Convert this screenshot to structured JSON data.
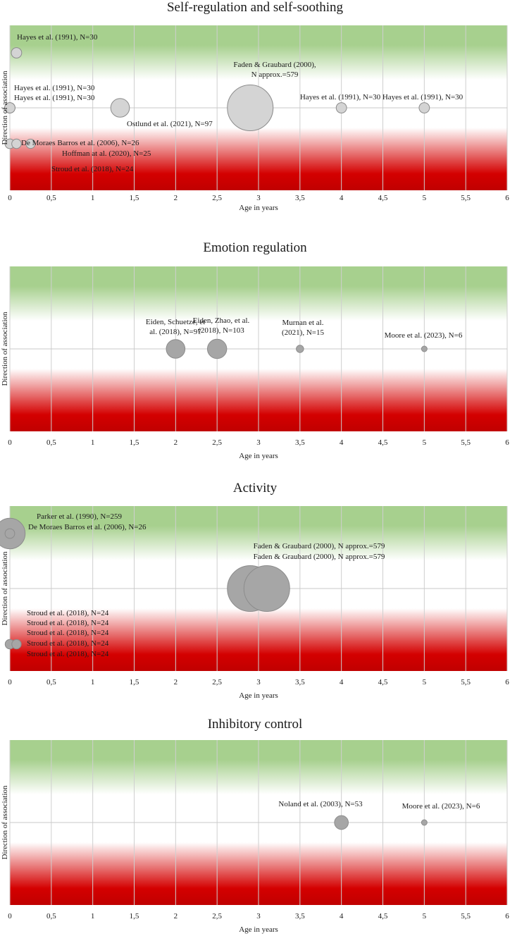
{
  "chart_data": [
    {
      "type": "scatter",
      "variant": "bubble",
      "title": "Self-regulation and self-soothing",
      "xlabel": "Age in years",
      "ylabel": "Direction of association",
      "xlim": [
        0,
        6
      ],
      "xticks": [
        "0",
        "0,5",
        "1",
        "1,5",
        "2",
        "2,5",
        "3",
        "3,5",
        "4",
        "4,5",
        "5",
        "5,5",
        "6"
      ],
      "y_levels": [
        "positive",
        "neutral",
        "negative"
      ],
      "background": "green (top) to red (bottom) gradient",
      "grid": "vertical",
      "bubble_color": "#d4d4d4",
      "points": [
        {
          "label": "Hayes et al. (1991), N=30",
          "x": 0.08,
          "y": "positive",
          "n": 30
        },
        {
          "label": "Hayes et al. (1991), N=30",
          "x": 0.0,
          "y": "neutral",
          "n": 30
        },
        {
          "label": "Hayes et al. (1991), N=30",
          "x": 0.0,
          "y": "neutral",
          "n": 30
        },
        {
          "label": "Ostlund et al. (2021), N=97",
          "x": 1.33,
          "y": "neutral",
          "n": 97
        },
        {
          "label": "Faden & Graubard (2000), N approx.=579",
          "x": 2.9,
          "y": "neutral",
          "n": 579
        },
        {
          "label": "Hayes et al. (1991), N=30",
          "x": 4.0,
          "y": "neutral",
          "n": 30
        },
        {
          "label": "Hayes et al. (1991), N=30",
          "x": 5.0,
          "y": "neutral",
          "n": 30
        },
        {
          "label": "De Moraes Barros et al. (2006), N=26",
          "x": 0.0,
          "y": "negative",
          "n": 26
        },
        {
          "label": "Hoffman at al. (2020), N=25",
          "x": 0.08,
          "y": "negative",
          "n": 25
        },
        {
          "label": "Stroud et al. (2018), N=24",
          "x": 0.25,
          "y": "negative",
          "n": 24
        }
      ],
      "annotations": [
        {
          "text": "Hayes et al. (1991), N=30",
          "x": 0.08,
          "y": "positive"
        },
        {
          "text": "Hayes et al. (1991), N=30",
          "x": 0.05,
          "y": "neutral"
        },
        {
          "text": "Hayes et al. (1991), N=30",
          "x": 0.05,
          "y": "neutral"
        },
        {
          "text": "Faden & Graubard (2000),",
          "x": 2.95,
          "y": "neutral"
        },
        {
          "text": "N approx.=579",
          "x": 2.95,
          "y": "neutral"
        },
        {
          "text": "Hayes et al. (1991), N=30",
          "x": 4.0,
          "y": "neutral"
        },
        {
          "text": "Hayes et al. (1991), N=30",
          "x": 5.0,
          "y": "neutral"
        },
        {
          "text": "Ostlund et al. (2021), N=97",
          "x": 1.6,
          "y": "neutral"
        },
        {
          "text": "De Moraes Barros et al. (2006), N=26",
          "x": 0.1,
          "y": "negative"
        },
        {
          "text": "Hoffman at al. (2020), N=25",
          "x": 0.55,
          "y": "negative"
        },
        {
          "text": "Stroud et al. (2018), N=24",
          "x": 0.5,
          "y": "negative"
        }
      ]
    },
    {
      "type": "scatter",
      "variant": "bubble",
      "title": "Emotion regulation",
      "xlabel": "Age in years",
      "ylabel": "Direction of association",
      "xlim": [
        0,
        6
      ],
      "xticks": [
        "0",
        "0,5",
        "1",
        "1,5",
        "2",
        "2,5",
        "3",
        "3,5",
        "4",
        "4,5",
        "5",
        "5,5",
        "6"
      ],
      "y_levels": [
        "positive",
        "neutral",
        "negative"
      ],
      "background": "green (top) to red (bottom) gradient",
      "grid": "vertical",
      "bubble_color": "#a6a6a6",
      "points": [
        {
          "label": "Eiden, Schuetze, et al. (2018), N=97",
          "x": 2.0,
          "y": "neutral",
          "n": 97
        },
        {
          "label": "Eiden, Zhao, et al. (2018), N=103",
          "x": 2.5,
          "y": "neutral",
          "n": 103
        },
        {
          "label": "Murnan et al. (2021), N=15",
          "x": 3.5,
          "y": "neutral",
          "n": 15
        },
        {
          "label": "Moore et al. (2023), N=6",
          "x": 5.0,
          "y": "neutral",
          "n": 6
        }
      ],
      "annotations": [
        {
          "text": "Eiden, Schuetze, et",
          "x": 2.0,
          "y": "neutral"
        },
        {
          "text": "al. (2018), N=97",
          "x": 2.0,
          "y": "neutral"
        },
        {
          "text": "Eiden, Zhao, et al.",
          "x": 2.55,
          "y": "neutral"
        },
        {
          "text": "(2018), N=103",
          "x": 2.55,
          "y": "neutral"
        },
        {
          "text": "Murnan et al.",
          "x": 3.55,
          "y": "neutral"
        },
        {
          "text": "(2021), N=15",
          "x": 3.55,
          "y": "neutral"
        },
        {
          "text": "Moore et al. (2023), N=6",
          "x": 5.0,
          "y": "neutral"
        }
      ]
    },
    {
      "type": "scatter",
      "variant": "bubble",
      "title": "Activity",
      "xlabel": "Age in years",
      "ylabel": "Direction of association",
      "xlim": [
        0,
        6
      ],
      "xticks": [
        "0",
        "0,5",
        "1",
        "1,5",
        "2",
        "2,5",
        "3",
        "3,5",
        "4",
        "4,5",
        "5",
        "5,5",
        "6"
      ],
      "y_levels": [
        "positive",
        "neutral",
        "negative"
      ],
      "background": "green (top) to red (bottom) gradient",
      "grid": "vertical",
      "bubble_color": "#a6a6a6",
      "points": [
        {
          "label": "Parker et al. (1990), N=259",
          "x": 0.0,
          "y": "positive",
          "n": 259
        },
        {
          "label": "De Moraes Barros et al. (2006), N=26",
          "x": 0.0,
          "y": "positive",
          "n": 26
        },
        {
          "label": "Faden & Graubard (2000), N approx.=579",
          "x": 2.9,
          "y": "neutral",
          "n": 579
        },
        {
          "label": "Faden & Graubard (2000), N approx.=579",
          "x": 3.1,
          "y": "neutral",
          "n": 579
        },
        {
          "label": "Stroud et al. (2018), N=24",
          "x": 0.0,
          "y": "negative",
          "n": 24
        },
        {
          "label": "Stroud et al. (2018), N=24",
          "x": 0.0,
          "y": "negative",
          "n": 24
        },
        {
          "label": "Stroud et al. (2018), N=24",
          "x": 0.0,
          "y": "negative",
          "n": 24
        },
        {
          "label": "Stroud et al. (2018), N=24",
          "x": 0.08,
          "y": "negative",
          "n": 24
        },
        {
          "label": "Stroud et al. (2018), N=24",
          "x": 0.08,
          "y": "negative",
          "n": 24
        }
      ],
      "annotations": [
        {
          "text": "Parker et al. (1990), N=259",
          "x": 0.45,
          "y": "positive"
        },
        {
          "text": "De Moraes Barros et al. (2006), N=26",
          "x": 0.3,
          "y": "positive"
        },
        {
          "text": "Faden & Graubard (2000), N approx.=579",
          "x": 3.3,
          "y": "neutral"
        },
        {
          "text": "Faden & Graubard (2000), N approx.=579",
          "x": 3.3,
          "y": "neutral"
        },
        {
          "text": "Stroud et al. (2018), N=24",
          "x": 0.2,
          "y": "negative"
        },
        {
          "text": "Stroud et al. (2018), N=24",
          "x": 0.2,
          "y": "negative"
        },
        {
          "text": "Stroud et al. (2018), N=24",
          "x": 0.2,
          "y": "negative"
        },
        {
          "text": "Stroud et al. (2018), N=24",
          "x": 0.2,
          "y": "negative"
        },
        {
          "text": "Stroud et al. (2018), N=24",
          "x": 0.2,
          "y": "negative"
        }
      ]
    },
    {
      "type": "scatter",
      "variant": "bubble",
      "title": "Inhibitory control",
      "xlabel": "Age in years",
      "ylabel": "Direction of association",
      "xlim": [
        0,
        6
      ],
      "xticks": [
        "0",
        "0,5",
        "1",
        "1,5",
        "2",
        "2,5",
        "3",
        "3,5",
        "4",
        "4,5",
        "5",
        "5,5",
        "6"
      ],
      "y_levels": [
        "positive",
        "neutral",
        "negative"
      ],
      "background": "green (top) to red (bottom) gradient",
      "grid": "vertical",
      "bubble_color": "#a6a6a6",
      "points": [
        {
          "label": "Noland et al. (2003), N=53",
          "x": 4.0,
          "y": "neutral",
          "n": 53
        },
        {
          "label": "Moore et al. (2023), N=6",
          "x": 5.0,
          "y": "neutral",
          "n": 6
        }
      ],
      "annotations": [
        {
          "text": "Noland et al. (2003), N=53",
          "x": 3.55,
          "y": "neutral"
        },
        {
          "text": "Moore et al. (2023), N=6",
          "x": 5.05,
          "y": "neutral"
        }
      ]
    }
  ]
}
